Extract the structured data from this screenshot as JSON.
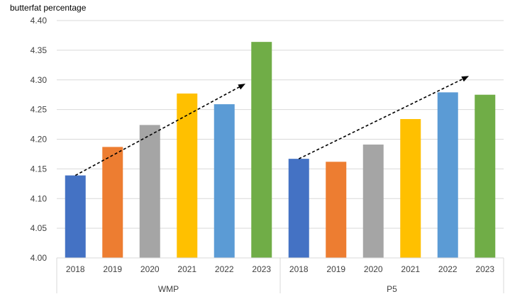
{
  "chart_data": {
    "type": "bar",
    "ylabel": "butterfat percentage",
    "ylim": [
      4.0,
      4.4
    ],
    "yticks": [
      "4.00",
      "4.05",
      "4.10",
      "4.15",
      "4.20",
      "4.25",
      "4.30",
      "4.35",
      "4.40"
    ],
    "grid": true,
    "groups": [
      {
        "name": "WMP",
        "categories": [
          "2018",
          "2019",
          "2020",
          "2021",
          "2022",
          "2023"
        ],
        "values": [
          4.139,
          4.187,
          4.224,
          4.277,
          4.259,
          4.364
        ],
        "trend": [
          4.139,
          4.293
        ]
      },
      {
        "name": "P5",
        "categories": [
          "2018",
          "2019",
          "2020",
          "2021",
          "2022",
          "2023"
        ],
        "values": [
          4.167,
          4.162,
          4.191,
          4.234,
          4.279,
          4.275
        ],
        "trend": [
          4.167,
          4.306
        ]
      }
    ],
    "colors": [
      "#4472C4",
      "#ED7D31",
      "#A5A5A5",
      "#FFC000",
      "#5B9BD5",
      "#70AD47"
    ],
    "gridColor": "#D9D9D9",
    "axisColor": "#D9D9D9",
    "trendColor": "#000000"
  }
}
